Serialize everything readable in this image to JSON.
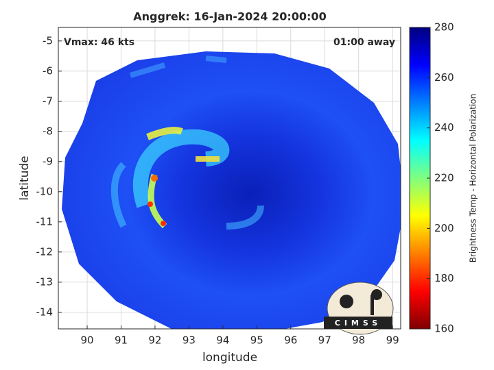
{
  "chart_data": {
    "type": "image",
    "title": "Anggrek: 16-Jan-2024 20:00:00",
    "annotations": [
      "Vmax: 46 kts",
      "01:00 away"
    ],
    "x_label": "longitude",
    "y_label": "latitude",
    "xlim": [
      89.15,
      99.24
    ],
    "ylim": [
      -14.55,
      -4.55
    ],
    "xticks": [
      90,
      91,
      92,
      93,
      94,
      95,
      96,
      97,
      98,
      99
    ],
    "yticks": [
      -5,
      -6,
      -7,
      -8,
      -9,
      -10,
      -11,
      -12,
      -13,
      -14
    ],
    "grid": true,
    "colorbar": {
      "label": "Brightness Temp - Horizontal Polarization",
      "lim": [
        160,
        280
      ],
      "ticks": [
        160,
        180,
        200,
        220,
        240,
        260,
        280
      ]
    }
  },
  "logo": {
    "text": "CIMSS"
  }
}
